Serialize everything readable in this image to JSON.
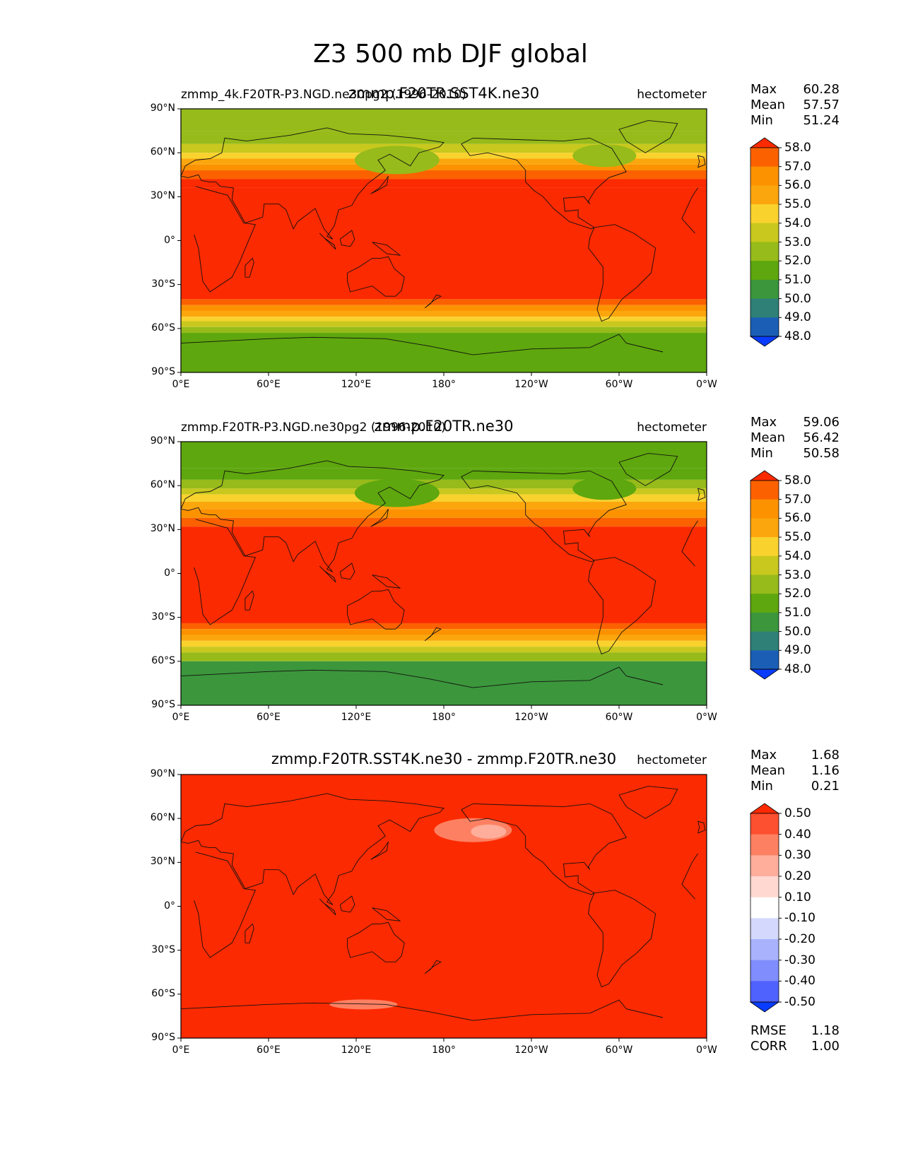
{
  "figure": {
    "title": "Z3 500 mb DJF global",
    "lat_ticks": [
      "90°N",
      "60°N",
      "30°N",
      "0°",
      "30°S",
      "60°S",
      "90°S"
    ],
    "lon_ticks": [
      "0°E",
      "60°E",
      "120°E",
      "180°",
      "120°W",
      "60°W",
      "0°W"
    ]
  },
  "panels": [
    {
      "left_title": "zmmp_4k.F20TR-P3.NGD.ne30pg2 (1996-2010)",
      "center_title": "zmmp.F20TR.SST4K.ne30",
      "units": "hectometer",
      "stats": [
        {
          "label": "Max",
          "value": "60.28"
        },
        {
          "label": "Mean",
          "value": "57.57"
        },
        {
          "label": "Min",
          "value": "51.24"
        }
      ],
      "colorbar": {
        "levels": [
          "58.0",
          "57.0",
          "56.0",
          "55.0",
          "54.0",
          "53.0",
          "52.0",
          "51.0",
          "50.0",
          "49.0",
          "48.0"
        ],
        "colors": [
          "#fc2a00",
          "#fc6100",
          "#fc9200",
          "#fca60e",
          "#f9d22e",
          "#c8c81e",
          "#96bb1a",
          "#5ea70e",
          "#3c963c",
          "#2f8077",
          "#1a5fb5",
          "#0a3cff"
        ]
      }
    },
    {
      "left_title": "zmmp.F20TR-P3.NGD.ne30pg2 (1996-2010)",
      "center_title": "zmmp.F20TR.ne30",
      "units": "hectometer",
      "stats": [
        {
          "label": "Max",
          "value": "59.06"
        },
        {
          "label": "Mean",
          "value": "56.42"
        },
        {
          "label": "Min",
          "value": "50.58"
        }
      ],
      "colorbar": {
        "levels": [
          "58.0",
          "57.0",
          "56.0",
          "55.0",
          "54.0",
          "53.0",
          "52.0",
          "51.0",
          "50.0",
          "49.0",
          "48.0"
        ],
        "colors": [
          "#fc2a00",
          "#fc6100",
          "#fc9200",
          "#fca60e",
          "#f9d22e",
          "#c8c81e",
          "#96bb1a",
          "#5ea70e",
          "#3c963c",
          "#2f8077",
          "#1a5fb5",
          "#0a3cff"
        ]
      }
    },
    {
      "left_title": "",
      "center_title": "zmmp.F20TR.SST4K.ne30 - zmmp.F20TR.ne30",
      "units": "hectometer",
      "stats": [
        {
          "label": "Max",
          "value": "1.68"
        },
        {
          "label": "Mean",
          "value": "1.16"
        },
        {
          "label": "Min",
          "value": "0.21"
        }
      ],
      "colorbar": {
        "levels": [
          "0.50",
          "0.40",
          "0.30",
          "0.20",
          "0.10",
          "-0.10",
          "-0.20",
          "-0.30",
          "-0.40",
          "-0.50"
        ],
        "colors": [
          "#fc2a00",
          "#fd5030",
          "#fe8062",
          "#feae9b",
          "#fed8d1",
          "#ffffff",
          "#d4d8fd",
          "#a8b2fd",
          "#7f8dfd",
          "#4f62fe",
          "#0a3cff"
        ]
      },
      "footer_stats": [
        {
          "label": "RMSE",
          "value": "1.18"
        },
        {
          "label": "CORR",
          "value": "1.00"
        }
      ]
    }
  ]
}
